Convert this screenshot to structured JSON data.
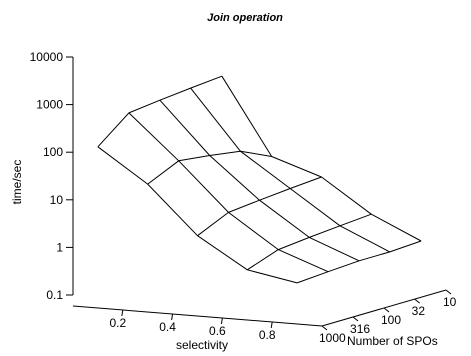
{
  "chart_data": {
    "type": "surface3d",
    "title": "Join operation",
    "xlabel": "selectivity",
    "ylabel": "Number of SPOs",
    "zlabel": "time/sec",
    "zscale": "log",
    "x_ticks": [
      "0.2",
      "0.4",
      "0.6",
      "0.8"
    ],
    "y_ticks": [
      "10",
      "32",
      "100",
      "316",
      "1000"
    ],
    "z_ticks": [
      "0.1",
      "1",
      "10",
      "100",
      "1000",
      "10000"
    ],
    "x": [
      0.1,
      0.3,
      0.5,
      0.7,
      0.9
    ],
    "y": [
      1000,
      316,
      100,
      32,
      10
    ],
    "z": [
      [
        150,
        500,
        600,
        700,
        800
      ],
      [
        30,
        60,
        50,
        40,
        20
      ],
      [
        3,
        6,
        7,
        8,
        9
      ],
      [
        0.7,
        1.2,
        1.4,
        1.6,
        1.8
      ],
      [
        0.45,
        0.5,
        0.55,
        0.55,
        0.6
      ]
    ]
  }
}
